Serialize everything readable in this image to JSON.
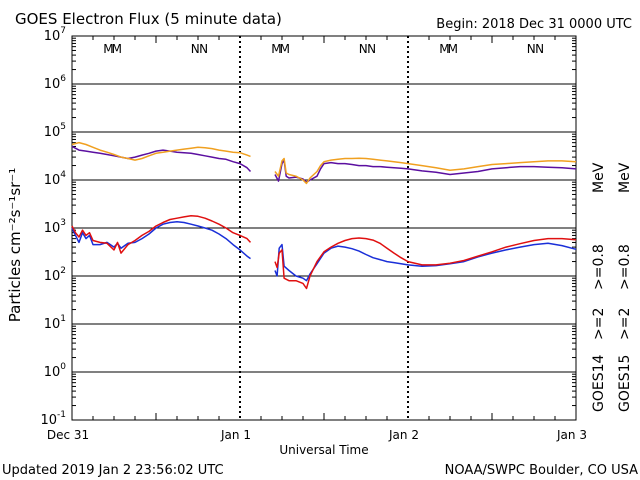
{
  "title": "GOES Electron Flux (5 minute data)",
  "begin": "Begin: 2018 Dec 31 0000 UTC",
  "updated": "Updated 2019 Jan  2 23:56:02 UTC",
  "credit": "NOAA/SWPC Boulder, CO USA",
  "colors": {
    "goes14_low": "#5b0fa0",
    "goes15_low": "#f0a020",
    "goes14_high": "#1a2fd8",
    "goes15_high": "#e01010",
    "m_blue": "#1a2fd8",
    "m_red": "#e01010"
  },
  "legend": {
    "goes14": "GOES14",
    "goes15": "GOES15",
    "ge2": ">=2",
    "ge08": ">=0.8",
    "mev": "MeV"
  },
  "markers": {
    "m_label": "M",
    "n_label": "N",
    "m_hours": [
      5.2,
      6.4,
      29.2,
      30.4,
      53.2,
      54.4
    ],
    "n_hours": [
      17.6,
      18.8,
      41.6,
      42.8,
      65.6,
      66.8
    ]
  },
  "chart_data": {
    "type": "line",
    "xlabel": "Universal Time",
    "ylabel": "Particles cm⁻²s⁻¹sr⁻¹",
    "x_unit": "hours since 2018 Dec 31 0000 UTC",
    "xlim": [
      0,
      72
    ],
    "x_ticks": [
      {
        "x": 0,
        "label": "Dec 31"
      },
      {
        "x": 24,
        "label": "Jan 1"
      },
      {
        "x": 48,
        "label": "Jan 2"
      },
      {
        "x": 72,
        "label": "Jan 3"
      }
    ],
    "y_scale": "log",
    "ylim_exponent": [
      -1,
      7
    ],
    "y_tick_base": "10",
    "y_tick_exponents": [
      "-1",
      "0",
      "1",
      "2",
      "3",
      "4",
      "5",
      "6",
      "7"
    ],
    "threshold_lines": [
      1000
    ],
    "series": [
      {
        "color_key": "goes14_low",
        "points": [
          [
            0,
            50000
          ],
          [
            1,
            42000
          ],
          [
            2,
            40000
          ],
          [
            3,
            38000
          ],
          [
            4,
            36000
          ],
          [
            5,
            34000
          ],
          [
            6,
            32000
          ],
          [
            7,
            30000
          ],
          [
            8,
            28000
          ],
          [
            9,
            30000
          ],
          [
            10,
            33000
          ],
          [
            11,
            36000
          ],
          [
            12,
            40000
          ],
          [
            13,
            42000
          ],
          [
            14,
            40000
          ],
          [
            15,
            38000
          ],
          [
            16,
            37000
          ],
          [
            17,
            36000
          ],
          [
            18,
            34000
          ],
          [
            19,
            32000
          ],
          [
            20,
            30000
          ],
          [
            21,
            28000
          ],
          [
            22,
            27000
          ],
          [
            23,
            24000
          ],
          [
            24,
            22000
          ],
          [
            25,
            18000
          ],
          [
            25.5,
            15000
          ]
        ]
      },
      {
        "color_key": "goes14_low",
        "points": [
          [
            29,
            13000
          ],
          [
            29.5,
            9500
          ],
          [
            30,
            22000
          ],
          [
            30.3,
            26000
          ],
          [
            30.6,
            12000
          ],
          [
            31,
            11000
          ],
          [
            32,
            11500
          ],
          [
            33,
            10500
          ],
          [
            33.5,
            9000
          ],
          [
            34,
            10000
          ],
          [
            35,
            12000
          ],
          [
            35.5,
            17000
          ],
          [
            36,
            22000
          ],
          [
            37,
            23000
          ],
          [
            38,
            22000
          ],
          [
            39,
            22000
          ],
          [
            40,
            21000
          ],
          [
            41,
            20000
          ],
          [
            42,
            20000
          ],
          [
            43,
            19000
          ],
          [
            44,
            19000
          ],
          [
            45,
            18500
          ],
          [
            46,
            18000
          ],
          [
            47,
            17500
          ],
          [
            48,
            17000
          ],
          [
            50,
            15500
          ],
          [
            52,
            14500
          ],
          [
            54,
            13000
          ],
          [
            56,
            14000
          ],
          [
            58,
            15000
          ],
          [
            60,
            17000
          ],
          [
            62,
            18000
          ],
          [
            64,
            19000
          ],
          [
            66,
            19000
          ],
          [
            68,
            18500
          ],
          [
            70,
            18000
          ],
          [
            72,
            17000
          ]
        ]
      },
      {
        "color_key": "goes15_low",
        "points": [
          [
            0,
            55000
          ],
          [
            1,
            60000
          ],
          [
            2,
            55000
          ],
          [
            3,
            48000
          ],
          [
            4,
            42000
          ],
          [
            5,
            38000
          ],
          [
            6,
            34000
          ],
          [
            7,
            30000
          ],
          [
            8,
            28000
          ],
          [
            9,
            26000
          ],
          [
            10,
            28000
          ],
          [
            11,
            32000
          ],
          [
            12,
            36000
          ],
          [
            13,
            38000
          ],
          [
            14,
            40000
          ],
          [
            15,
            42000
          ],
          [
            16,
            44000
          ],
          [
            17,
            46000
          ],
          [
            18,
            48000
          ],
          [
            19,
            47000
          ],
          [
            20,
            45000
          ],
          [
            21,
            42000
          ],
          [
            22,
            40000
          ],
          [
            23,
            38000
          ],
          [
            24,
            37000
          ],
          [
            25,
            33000
          ],
          [
            25.5,
            31000
          ]
        ]
      },
      {
        "color_key": "goes15_low",
        "points": [
          [
            29,
            15000
          ],
          [
            29.5,
            12000
          ],
          [
            30,
            25000
          ],
          [
            30.3,
            28000
          ],
          [
            30.6,
            14000
          ],
          [
            31,
            13000
          ],
          [
            32,
            12000
          ],
          [
            33,
            10000
          ],
          [
            33.5,
            8500
          ],
          [
            34,
            11000
          ],
          [
            35,
            15000
          ],
          [
            35.5,
            20000
          ],
          [
            36,
            24000
          ],
          [
            37,
            26000
          ],
          [
            38,
            27000
          ],
          [
            39,
            28000
          ],
          [
            40,
            28000
          ],
          [
            41,
            28500
          ],
          [
            42,
            28000
          ],
          [
            43,
            27000
          ],
          [
            44,
            26000
          ],
          [
            45,
            25000
          ],
          [
            46,
            24000
          ],
          [
            47,
            23000
          ],
          [
            48,
            22000
          ],
          [
            50,
            20000
          ],
          [
            52,
            18000
          ],
          [
            54,
            16000
          ],
          [
            56,
            17000
          ],
          [
            58,
            19000
          ],
          [
            60,
            21000
          ],
          [
            62,
            22000
          ],
          [
            64,
            23000
          ],
          [
            66,
            24000
          ],
          [
            68,
            25000
          ],
          [
            70,
            25000
          ],
          [
            72,
            24000
          ]
        ]
      },
      {
        "color_key": "goes14_high",
        "points": [
          [
            0,
            1000
          ],
          [
            0.5,
            700
          ],
          [
            1,
            500
          ],
          [
            1.5,
            800
          ],
          [
            2,
            600
          ],
          [
            2.5,
            700
          ],
          [
            3,
            450
          ],
          [
            4,
            450
          ],
          [
            5,
            500
          ],
          [
            6,
            400
          ],
          [
            6.5,
            480
          ],
          [
            7,
            380
          ],
          [
            8,
            480
          ],
          [
            9,
            500
          ],
          [
            10,
            600
          ],
          [
            11,
            750
          ],
          [
            12,
            1000
          ],
          [
            13,
            1200
          ],
          [
            14,
            1300
          ],
          [
            15,
            1350
          ],
          [
            16,
            1300
          ],
          [
            17,
            1200
          ],
          [
            18,
            1100
          ],
          [
            19,
            1000
          ],
          [
            20,
            900
          ],
          [
            21,
            750
          ],
          [
            22,
            600
          ],
          [
            23,
            450
          ],
          [
            24,
            350
          ],
          [
            25,
            260
          ],
          [
            25.5,
            230
          ]
        ]
      },
      {
        "color_key": "goes14_high",
        "points": [
          [
            29,
            130
          ],
          [
            29.3,
            100
          ],
          [
            29.6,
            380
          ],
          [
            30,
            450
          ],
          [
            30.3,
            160
          ],
          [
            31,
            130
          ],
          [
            32,
            100
          ],
          [
            33,
            90
          ],
          [
            33.5,
            80
          ],
          [
            34,
            110
          ],
          [
            35,
            180
          ],
          [
            36,
            300
          ],
          [
            37,
            380
          ],
          [
            38,
            420
          ],
          [
            39,
            400
          ],
          [
            40,
            370
          ],
          [
            41,
            330
          ],
          [
            42,
            280
          ],
          [
            43,
            240
          ],
          [
            44,
            220
          ],
          [
            45,
            200
          ],
          [
            46,
            190
          ],
          [
            47,
            180
          ],
          [
            48,
            170
          ],
          [
            50,
            160
          ],
          [
            52,
            165
          ],
          [
            54,
            180
          ],
          [
            56,
            200
          ],
          [
            58,
            250
          ],
          [
            60,
            300
          ],
          [
            62,
            350
          ],
          [
            64,
            400
          ],
          [
            66,
            450
          ],
          [
            68,
            480
          ],
          [
            70,
            430
          ],
          [
            72,
            360
          ]
        ]
      },
      {
        "color_key": "goes15_high",
        "points": [
          [
            0,
            1100
          ],
          [
            0.5,
            800
          ],
          [
            1,
            650
          ],
          [
            1.5,
            900
          ],
          [
            2,
            700
          ],
          [
            2.5,
            800
          ],
          [
            3,
            550
          ],
          [
            4,
            500
          ],
          [
            5,
            480
          ],
          [
            6,
            350
          ],
          [
            6.5,
            500
          ],
          [
            7,
            300
          ],
          [
            8,
            450
          ],
          [
            9,
            550
          ],
          [
            10,
            700
          ],
          [
            11,
            850
          ],
          [
            12,
            1100
          ],
          [
            13,
            1300
          ],
          [
            14,
            1500
          ],
          [
            15,
            1600
          ],
          [
            16,
            1700
          ],
          [
            17,
            1800
          ],
          [
            18,
            1750
          ],
          [
            19,
            1600
          ],
          [
            20,
            1400
          ],
          [
            21,
            1200
          ],
          [
            22,
            1000
          ],
          [
            23,
            800
          ],
          [
            24,
            700
          ],
          [
            25,
            600
          ],
          [
            25.5,
            500
          ]
        ]
      },
      {
        "color_key": "goes15_high",
        "points": [
          [
            29,
            200
          ],
          [
            29.3,
            150
          ],
          [
            29.6,
            300
          ],
          [
            30,
            350
          ],
          [
            30.3,
            90
          ],
          [
            31,
            80
          ],
          [
            32,
            80
          ],
          [
            33,
            70
          ],
          [
            33.5,
            55
          ],
          [
            34,
            100
          ],
          [
            35,
            200
          ],
          [
            36,
            320
          ],
          [
            37,
            400
          ],
          [
            38,
            480
          ],
          [
            39,
            550
          ],
          [
            40,
            600
          ],
          [
            41,
            620
          ],
          [
            42,
            600
          ],
          [
            43,
            560
          ],
          [
            44,
            480
          ],
          [
            45,
            380
          ],
          [
            46,
            300
          ],
          [
            47,
            240
          ],
          [
            48,
            200
          ],
          [
            50,
            170
          ],
          [
            52,
            170
          ],
          [
            54,
            185
          ],
          [
            56,
            210
          ],
          [
            58,
            260
          ],
          [
            60,
            320
          ],
          [
            62,
            400
          ],
          [
            64,
            470
          ],
          [
            66,
            550
          ],
          [
            68,
            600
          ],
          [
            70,
            600
          ],
          [
            72,
            570
          ]
        ]
      }
    ]
  }
}
